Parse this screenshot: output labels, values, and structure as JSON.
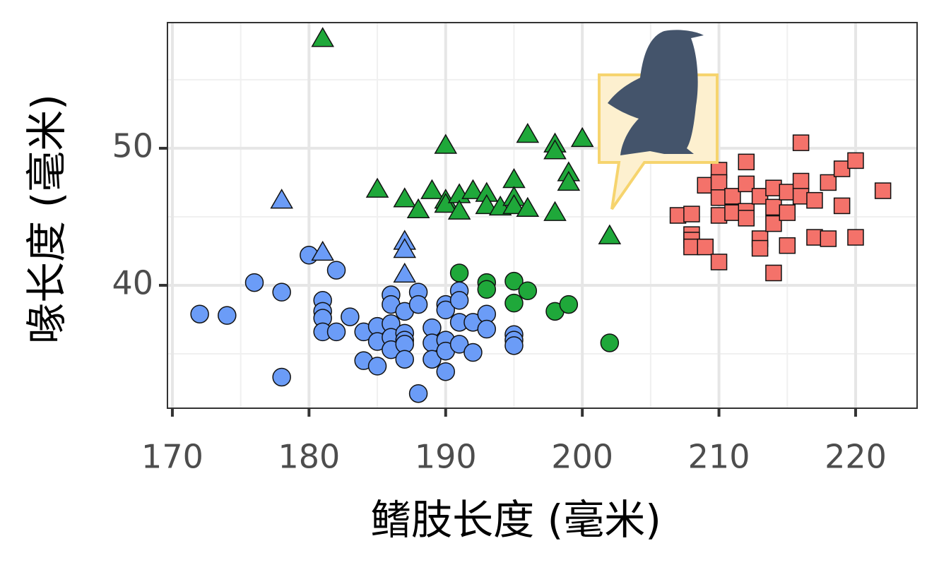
{
  "chart_data": {
    "type": "scatter",
    "x_label": "鳍肢长度 (毫米)",
    "y_label": "喙长度 (毫米)",
    "xlim": [
      169.64,
      224.5
    ],
    "ylim": [
      31.03,
      59.17
    ],
    "xticks": [
      170,
      180,
      190,
      200,
      210,
      220
    ],
    "yticks": [
      40,
      50
    ],
    "grid": true,
    "series": [
      {
        "color": "#6b9cf7",
        "marker": "circle",
        "x": [
          172,
          174,
          176,
          178,
          178,
          180,
          181,
          181,
          181,
          181,
          182,
          182,
          183,
          184,
          184,
          185,
          185,
          185,
          186,
          186,
          186,
          186,
          186,
          187,
          187,
          187,
          187,
          187,
          188,
          188,
          188,
          189,
          189,
          189,
          190,
          190,
          190,
          190,
          190,
          191,
          191,
          191,
          191,
          192,
          192,
          193,
          193,
          195,
          195,
          195
        ],
        "values": [
          37.9,
          37.8,
          40.2,
          39.5,
          33.3,
          42.2,
          38.9,
          38.1,
          37.6,
          36.6,
          41.1,
          36.6,
          37.7,
          36.6,
          34.5,
          37.0,
          35.9,
          34.1,
          39.3,
          38.6,
          37.2,
          36.2,
          35.3,
          38.1,
          36.5,
          36.0,
          35.7,
          34.6,
          39.5,
          38.6,
          32.1,
          36.9,
          35.8,
          34.6,
          38.6,
          38.2,
          36.0,
          35.2,
          33.7,
          39.6,
          38.9,
          37.3,
          35.7,
          37.3,
          35.1,
          37.9,
          36.8,
          36.4,
          36.0,
          35.6
        ]
      },
      {
        "color": "#6b9cf7",
        "marker": "triangle",
        "x": [
          178,
          181,
          187,
          187,
          187
        ],
        "values": [
          46.2,
          42.4,
          43.2,
          42.6,
          40.8
        ]
      },
      {
        "color": "#1fa83a",
        "marker": "circle",
        "x": [
          191,
          193,
          193,
          195,
          195,
          196,
          198,
          199,
          202
        ],
        "values": [
          40.9,
          40.2,
          39.7,
          40.3,
          38.7,
          39.6,
          38.1,
          38.6,
          35.8
        ]
      },
      {
        "color": "#1fa83a",
        "marker": "triangle",
        "x": [
          181,
          185,
          187,
          188,
          189,
          190,
          190,
          190,
          191,
          191,
          192,
          193,
          193,
          194,
          195,
          195,
          195,
          196,
          196,
          198,
          198,
          198,
          199,
          199,
          200,
          202
        ],
        "values": [
          58.0,
          47.0,
          46.3,
          45.5,
          46.9,
          50.2,
          46.2,
          45.9,
          46.6,
          45.4,
          46.9,
          46.7,
          45.8,
          45.7,
          47.7,
          46.4,
          45.8,
          51.0,
          45.6,
          50.3,
          49.8,
          45.3,
          48.2,
          47.5,
          50.7,
          43.6
        ]
      },
      {
        "color": "#f4726a",
        "marker": "square",
        "x": [
          207,
          208,
          208,
          208,
          208,
          209,
          209,
          210,
          210,
          210,
          210,
          210,
          211,
          211,
          212,
          212,
          212,
          212,
          213,
          213,
          213,
          214,
          214,
          214,
          214,
          215,
          215,
          215,
          216,
          216,
          216,
          217,
          217,
          218,
          218,
          219,
          219,
          220,
          220,
          222
        ],
        "values": [
          45.1,
          45.2,
          43.7,
          43.3,
          42.8,
          47.3,
          42.8,
          48.4,
          47.5,
          46.4,
          45.1,
          41.7,
          46.5,
          45.3,
          49.0,
          47.4,
          45.4,
          44.9,
          46.5,
          43.4,
          42.7,
          47.1,
          45.7,
          44.5,
          40.9,
          46.8,
          45.3,
          42.9,
          50.4,
          47.6,
          46.5,
          46.2,
          43.5,
          47.5,
          43.4,
          48.5,
          45.8,
          49.1,
          43.5,
          46.9
        ]
      }
    ]
  }
}
